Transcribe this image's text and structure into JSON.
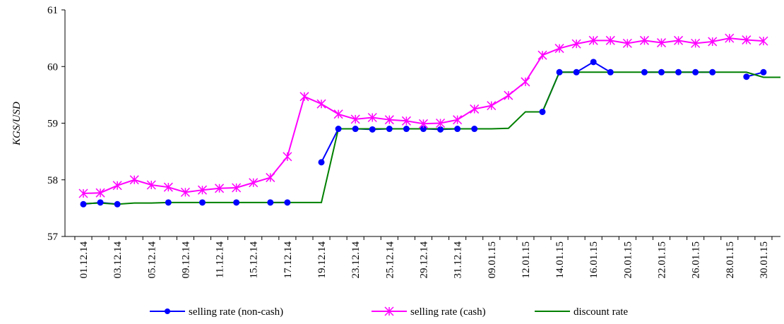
{
  "chart_data": {
    "type": "line",
    "y_label": "KGS/USD",
    "categories": [
      "01.12.14",
      null,
      "03.12.14",
      null,
      "05.12.14",
      null,
      "09.12.14",
      null,
      "11.12.14",
      null,
      "15.12.14",
      null,
      "17.12.14",
      null,
      "19.12.14",
      null,
      "23.12.14",
      null,
      "25.12.14",
      null,
      "29.12.14",
      null,
      "31.12.14",
      null,
      "09.01.15",
      null,
      "12.01.15",
      null,
      "14.01.15",
      null,
      "16.01.15",
      null,
      "20.01.15",
      null,
      "22.01.15",
      null,
      "26.01.15",
      null,
      "28.01.15",
      null,
      "30.01.15",
      null
    ],
    "series": [
      {
        "name": "selling rate (non-cash)",
        "color": "#0000ff",
        "marker": "circle",
        "values": [
          57.57,
          57.6,
          57.57,
          null,
          null,
          57.6,
          null,
          57.6,
          null,
          57.6,
          null,
          57.6,
          57.6,
          null,
          58.31,
          58.9,
          58.9,
          58.89,
          58.9,
          58.9,
          58.9,
          58.89,
          58.9,
          58.9,
          null,
          null,
          null,
          59.2,
          59.9,
          59.9,
          60.08,
          59.9,
          null,
          59.9,
          59.9,
          59.9,
          59.9,
          59.9,
          null,
          59.82,
          59.9,
          null
        ]
      },
      {
        "name": "selling rate (cash)",
        "color": "#ff00ff",
        "marker": "asterisk",
        "values": [
          57.76,
          57.77,
          57.9,
          58.0,
          57.91,
          57.87,
          57.78,
          57.82,
          57.85,
          57.86,
          57.95,
          58.04,
          58.41,
          59.47,
          59.34,
          59.16,
          59.07,
          59.1,
          59.06,
          59.04,
          58.99,
          59.0,
          59.06,
          59.25,
          59.31,
          59.49,
          59.73,
          60.2,
          60.32,
          60.4,
          60.46,
          60.46,
          60.41,
          60.46,
          60.42,
          60.46,
          60.41,
          60.44,
          60.5,
          60.47,
          60.45,
          null
        ]
      },
      {
        "name": "discount rate",
        "color": "#008000",
        "marker": "none",
        "values": [
          57.58,
          57.59,
          57.57,
          57.59,
          57.59,
          57.6,
          57.6,
          57.6,
          57.6,
          57.6,
          57.6,
          57.6,
          57.6,
          57.6,
          57.6,
          58.9,
          58.9,
          58.9,
          58.9,
          58.9,
          58.9,
          58.9,
          58.9,
          58.9,
          58.9,
          58.91,
          59.2,
          59.2,
          59.9,
          59.9,
          59.9,
          59.9,
          59.9,
          59.9,
          59.9,
          59.9,
          59.9,
          59.9,
          59.9,
          59.9,
          59.81,
          59.81
        ]
      }
    ],
    "ylim": [
      57,
      61
    ],
    "yticks": [
      57,
      58,
      59,
      60,
      61
    ],
    "legend": "bottom"
  }
}
